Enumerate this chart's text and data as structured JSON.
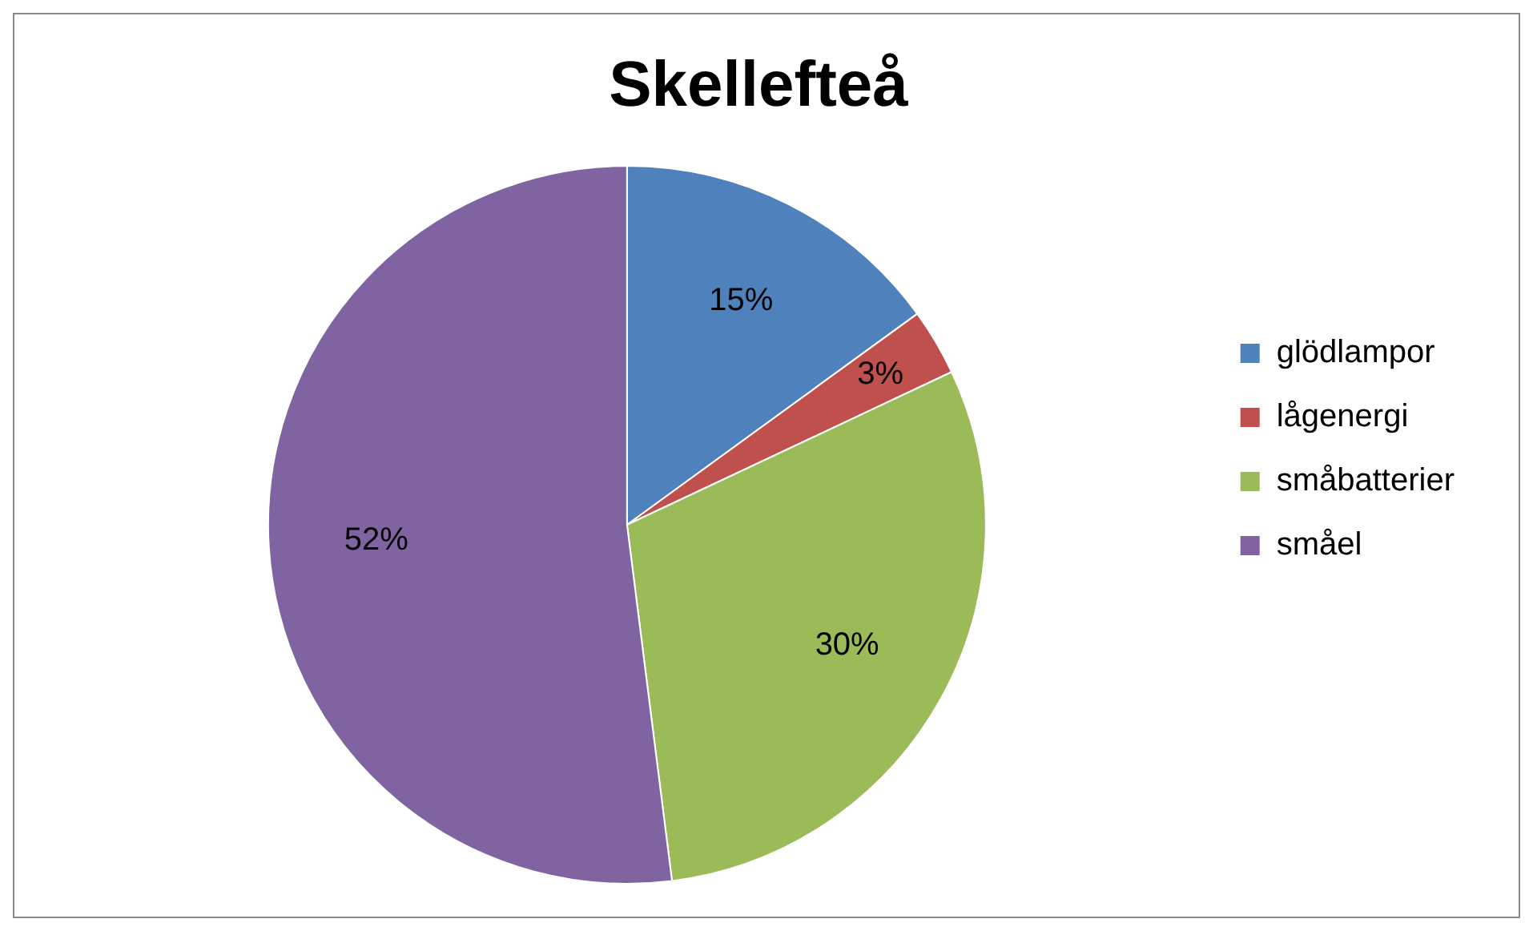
{
  "chart_data": {
    "type": "pie",
    "title": "Skellefteå",
    "categories": [
      "glödlampor",
      "lågenergi",
      "småbatterier",
      "småel"
    ],
    "values": [
      15,
      3,
      30,
      52
    ],
    "colors": [
      "#4f81bd",
      "#c0504d",
      "#9bbb59",
      "#8064a2"
    ],
    "value_labels": [
      "15%",
      "3%",
      "30%",
      "52%"
    ],
    "legend": "right"
  }
}
